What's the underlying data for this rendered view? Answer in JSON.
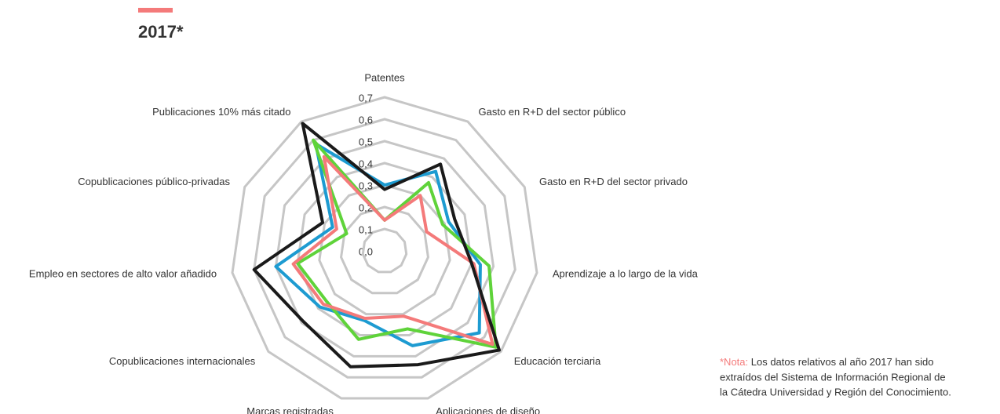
{
  "chart_data": {
    "type": "radar",
    "title": "2017*",
    "title_color": "#f47a7a",
    "categories": [
      "Patentes",
      "Gasto en R+D del sector público",
      "Gasto en R+D del sector privado",
      "Aprendizaje a lo largo de la vida",
      "Educación terciaria",
      "Aplicaciones de diseño",
      "Marcas registradas",
      "Copublicaciones internacionales",
      "Empleo en sectores de alto valor añadido",
      "Copublicaciones público-privadas",
      "Publicaciones 10% más citado"
    ],
    "ylim": [
      0,
      0.7
    ],
    "yticks": [
      {
        "value": 0,
        "label": "0,0"
      },
      {
        "value": 0.1,
        "label": "0,1"
      },
      {
        "value": 0.2,
        "label": "0,2"
      },
      {
        "value": 0.3,
        "label": "0,3"
      },
      {
        "value": 0.4,
        "label": "0,4"
      },
      {
        "value": 0.5,
        "label": "0,5"
      },
      {
        "value": 0.6,
        "label": "0,6"
      },
      {
        "value": 0.7,
        "label": "0,7"
      }
    ],
    "series": [
      {
        "color": "#1d9bd1",
        "values": [
          0.3,
          0.43,
          0.32,
          0.44,
          0.57,
          0.45,
          0.33,
          0.39,
          0.5,
          0.26,
          0.58
        ]
      },
      {
        "color": "#5fd33a",
        "values": [
          0.14,
          0.37,
          0.29,
          0.48,
          0.67,
          0.37,
          0.42,
          0.35,
          0.4,
          0.19,
          0.6
        ]
      },
      {
        "color": "#f47a7a",
        "values": [
          0.14,
          0.3,
          0.21,
          0.41,
          0.65,
          0.31,
          0.32,
          0.37,
          0.42,
          0.24,
          0.51
        ]
      },
      {
        "color": "#1a1a1a",
        "values": [
          0.28,
          0.47,
          0.35,
          0.4,
          0.69,
          0.54,
          0.55,
          0.49,
          0.6,
          0.31,
          0.69
        ]
      }
    ],
    "note": {
      "prefix": "*Nota:",
      "lines": [
        " Los datos relativos al año 2017 han sido",
        "extraídos del Sistema de Información Regional de",
        "la Cátedra Universidad y Región del Conocimiento."
      ]
    }
  }
}
